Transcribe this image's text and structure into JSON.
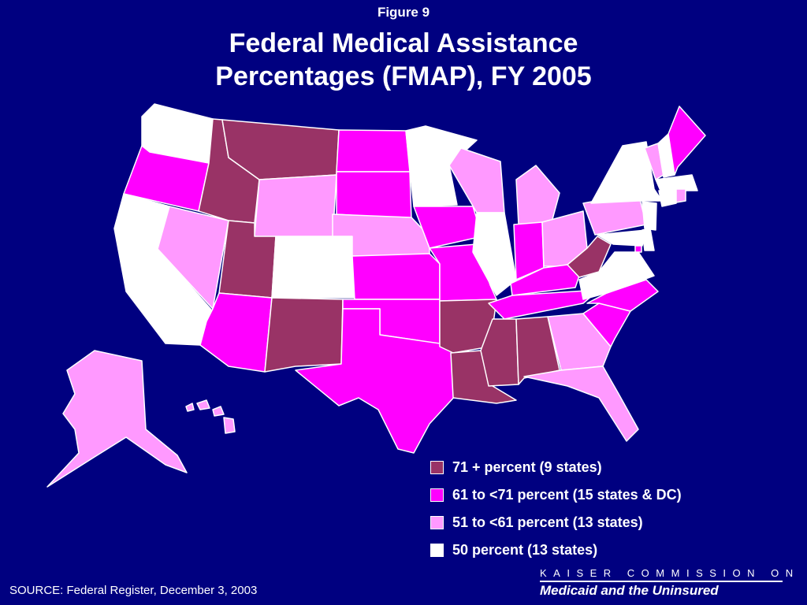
{
  "figure_label": "Figure 9",
  "title_line1": "Federal Medical Assistance",
  "title_line2": "Percentages (FMAP), FY 2005",
  "colors": {
    "background": "#000080",
    "tier_71_plus": "#993366",
    "tier_61_71": "#FF00FF",
    "tier_51_61": "#FF99FF",
    "tier_50": "#FFFFFF",
    "border": "#FFFFFF"
  },
  "legend": [
    {
      "label": "71 + percent (9 states)",
      "tier": "tier_71_plus"
    },
    {
      "label": "61 to <71 percent (15 states & DC)",
      "tier": "tier_61_71"
    },
    {
      "label": "51 to <61 percent (13 states)",
      "tier": "tier_51_61"
    },
    {
      "label": "50 percent (13 states)",
      "tier": "tier_50"
    }
  ],
  "state_tiers": {
    "WA": "tier_50",
    "OR": "tier_61_71",
    "CA": "tier_50",
    "NV": "tier_51_61",
    "ID": "tier_71_plus",
    "MT": "tier_71_plus",
    "WY": "tier_51_61",
    "UT": "tier_71_plus",
    "CO": "tier_50",
    "AZ": "tier_61_71",
    "NM": "tier_71_plus",
    "ND": "tier_61_71",
    "SD": "tier_61_71",
    "NE": "tier_51_61",
    "KS": "tier_61_71",
    "OK": "tier_61_71",
    "TX": "tier_61_71",
    "MN": "tier_50",
    "IA": "tier_61_71",
    "MO": "tier_61_71",
    "AR": "tier_71_plus",
    "LA": "tier_71_plus",
    "WI": "tier_51_61",
    "IL": "tier_50",
    "MI": "tier_51_61",
    "IN": "tier_61_71",
    "OH": "tier_51_61",
    "KY": "tier_61_71",
    "TN": "tier_61_71",
    "MS": "tier_71_plus",
    "AL": "tier_71_plus",
    "GA": "tier_51_61",
    "FL": "tier_51_61",
    "SC": "tier_61_71",
    "NC": "tier_61_71",
    "VA": "tier_50",
    "WV": "tier_71_plus",
    "PA": "tier_51_61",
    "NY": "tier_50",
    "VT": "tier_51_61",
    "NH": "tier_50",
    "ME": "tier_61_71",
    "MA": "tier_50",
    "RI": "tier_51_61",
    "CT": "tier_50",
    "NJ": "tier_50",
    "DE": "tier_50",
    "MD": "tier_50",
    "DC": "tier_61_71",
    "AK": "tier_51_61",
    "HI": "tier_51_61"
  },
  "source": "SOURCE: Federal Register, December 3, 2003",
  "logo_top": "KAISER COMMISSION ON",
  "logo_bottom": "Medicaid and the Uninsured"
}
